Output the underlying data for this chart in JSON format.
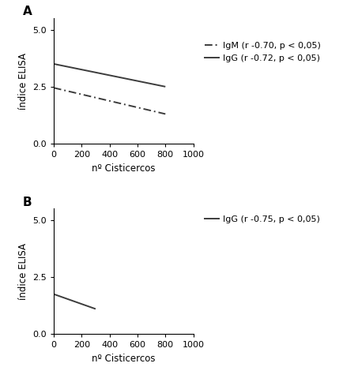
{
  "panel_A": {
    "IgG": {
      "x": [
        0,
        800
      ],
      "y": [
        3.5,
        2.5
      ]
    },
    "IgM": {
      "x": [
        0,
        800
      ],
      "y": [
        2.45,
        1.3
      ]
    },
    "legend_IgM": "IgM (r -0.70, p < 0,05)",
    "legend_IgG": "IgG (r -0.72, p < 0,05)",
    "label": "A",
    "xlabel": "nº Cisticercos",
    "ylabel": "índice ELISA",
    "xlim": [
      0,
      1000
    ],
    "ylim": [
      0.0,
      5.5
    ],
    "xticks": [
      0,
      200,
      400,
      600,
      800,
      1000
    ],
    "yticks": [
      0.0,
      2.5,
      5.0
    ]
  },
  "panel_B": {
    "IgG": {
      "x": [
        0,
        300
      ],
      "y": [
        1.75,
        1.1
      ]
    },
    "legend_IgG": "IgG (r -0.75, p < 0,05)",
    "label": "B",
    "xlabel": "nº Cisticercos",
    "ylabel": "índice ELISA",
    "xlim": [
      0,
      1000
    ],
    "ylim": [
      0.0,
      5.5
    ],
    "xticks": [
      0,
      200,
      400,
      600,
      800,
      1000
    ],
    "yticks": [
      0.0,
      2.5,
      5.0
    ]
  },
  "line_color": "#3c3c3c",
  "line_width": 1.4,
  "font_size_label": 8.5,
  "font_size_tick": 8,
  "font_size_legend": 8,
  "font_size_panel": 11,
  "background_color": "#ffffff"
}
